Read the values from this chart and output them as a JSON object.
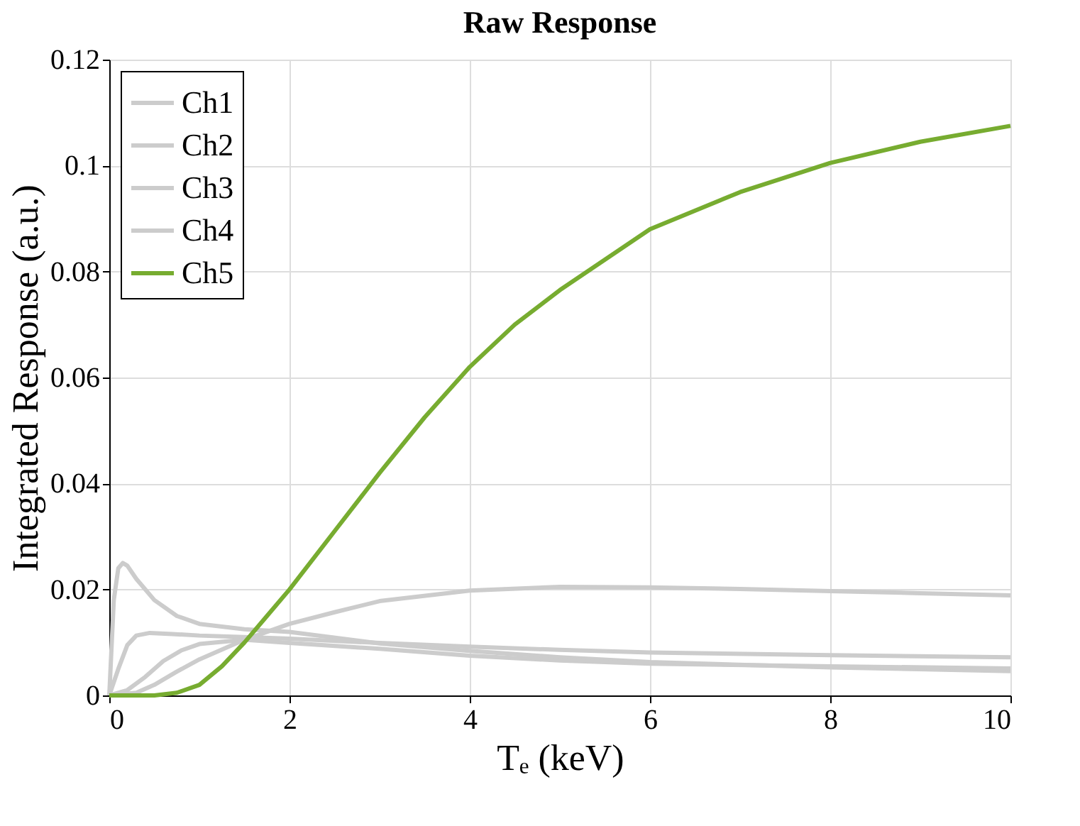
{
  "chart_data": {
    "type": "line",
    "title": "Raw Response",
    "xlabel": "Tₑ (keV)",
    "ylabel": "Integrated Response (a.u.)",
    "xlim": [
      0,
      10
    ],
    "ylim": [
      0,
      0.12
    ],
    "xticks": [
      0,
      2,
      4,
      6,
      8,
      10
    ],
    "yticks": [
      0,
      0.02,
      0.04,
      0.06,
      0.08,
      0.1,
      0.12
    ],
    "grid": true,
    "legend": "top left",
    "marker": "none",
    "line_style": "solid",
    "series": [
      {
        "name": "Ch1",
        "color": "#cccccc",
        "x": [
          0,
          0.05,
          0.1,
          0.15,
          0.2,
          0.3,
          0.5,
          0.75,
          1,
          1.5,
          2,
          3,
          4,
          5,
          6,
          8,
          10
        ],
        "values": [
          0,
          0.018,
          0.024,
          0.025,
          0.0245,
          0.022,
          0.018,
          0.015,
          0.0135,
          0.0125,
          0.012,
          0.0098,
          0.0084,
          0.0072,
          0.0063,
          0.0053,
          0.0046
        ]
      },
      {
        "name": "Ch2",
        "color": "#cccccc",
        "x": [
          0,
          0.1,
          0.2,
          0.3,
          0.45,
          0.7,
          1,
          1.5,
          2,
          3,
          4,
          5,
          6,
          8,
          10
        ],
        "values": [
          0,
          0.005,
          0.0095,
          0.0113,
          0.0118,
          0.0116,
          0.0113,
          0.011,
          0.0107,
          0.0099,
          0.0092,
          0.0086,
          0.0081,
          0.0076,
          0.0072
        ]
      },
      {
        "name": "Ch3",
        "color": "#cccccc",
        "x": [
          0,
          0.2,
          0.4,
          0.6,
          0.8,
          1,
          1.5,
          2,
          3,
          4,
          5,
          6,
          8,
          10
        ],
        "values": [
          0,
          0.001,
          0.0035,
          0.0065,
          0.0085,
          0.0097,
          0.0105,
          0.0099,
          0.0088,
          0.0075,
          0.0066,
          0.006,
          0.0055,
          0.0051
        ]
      },
      {
        "name": "Ch4",
        "color": "#cccccc",
        "x": [
          0,
          0.3,
          0.5,
          0.75,
          1,
          1.5,
          2,
          2.5,
          3,
          4,
          5,
          6,
          7,
          8,
          9,
          10
        ],
        "values": [
          0,
          0.0005,
          0.002,
          0.0045,
          0.0068,
          0.0105,
          0.0135,
          0.0157,
          0.0178,
          0.0198,
          0.0205,
          0.0204,
          0.0201,
          0.0197,
          0.0193,
          0.0189
        ]
      },
      {
        "name": "Ch5",
        "color": "#77ac30",
        "x": [
          0,
          0.5,
          0.75,
          1,
          1.25,
          1.5,
          1.75,
          2,
          2.5,
          3,
          3.5,
          4,
          4.5,
          5,
          6,
          7,
          8,
          9,
          10
        ],
        "values": [
          0,
          0,
          0.0005,
          0.002,
          0.0055,
          0.01,
          0.015,
          0.02,
          0.031,
          0.042,
          0.0525,
          0.062,
          0.07,
          0.0765,
          0.088,
          0.095,
          0.1005,
          0.1045,
          0.1075
        ]
      }
    ]
  }
}
